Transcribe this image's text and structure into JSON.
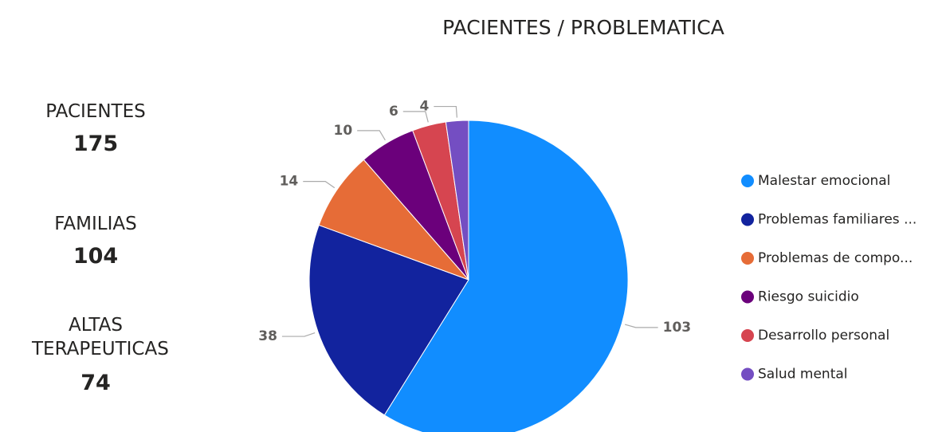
{
  "kpis": [
    {
      "label": "PACIENTES",
      "value": 175
    },
    {
      "label": "FAMILIAS",
      "value": 104
    },
    {
      "label": "ALTAS TERAPEUTICAS",
      "value": 74
    }
  ],
  "chart_data": {
    "type": "pie",
    "title": "PACIENTES / PROBLEMATICA",
    "categories": [
      "Malestar emocional",
      "Problemas familiares ...",
      "Problemas de compo...",
      "Riesgo suicidio",
      "Desarrollo personal",
      "Salud mental"
    ],
    "values": [
      103,
      38,
      14,
      10,
      6,
      4
    ],
    "colors": [
      "#118dff",
      "#12239e",
      "#e66c37",
      "#6b007b",
      "#d64550",
      "#744ec2"
    ],
    "legend": "right"
  }
}
